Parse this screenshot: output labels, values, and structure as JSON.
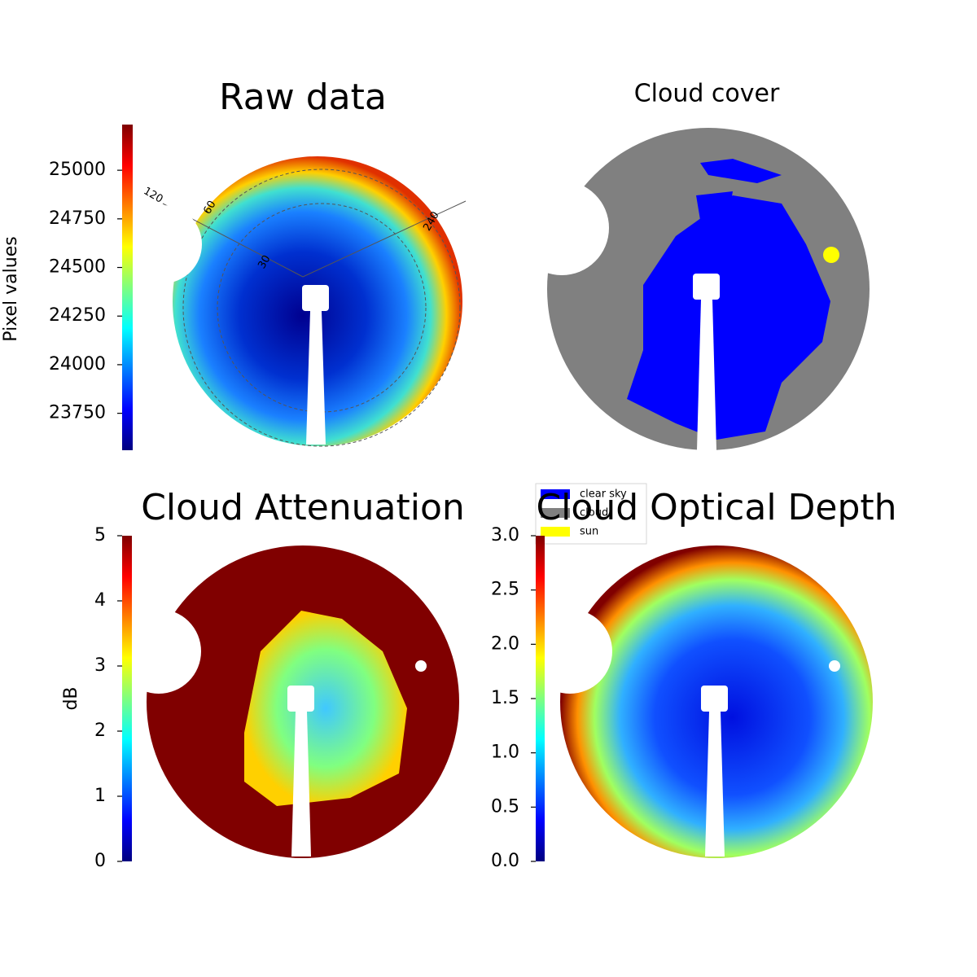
{
  "chart_data": [
    {
      "type": "image",
      "title": "Raw data",
      "colormap": "jet",
      "ylabel": "Pixel values",
      "ylim": [
        23560,
        25235
      ],
      "yticks": [
        23750,
        24000,
        24250,
        24500,
        24750,
        25000
      ],
      "polar_labels": [
        "120",
        "60",
        "240",
        "30"
      ]
    },
    {
      "type": "image",
      "title": "Cloud cover",
      "legend": [
        {
          "name": "clear sky",
          "color": "#0000ff"
        },
        {
          "name": "cloud",
          "color": "#808080"
        },
        {
          "name": "sun",
          "color": "#ffff00"
        }
      ]
    },
    {
      "type": "image",
      "title": "Cloud Attenuation",
      "colormap": "jet",
      "ylabel": "dB",
      "ylim": [
        0,
        5
      ],
      "yticks": [
        0,
        1,
        2,
        3,
        4,
        5
      ]
    },
    {
      "type": "image",
      "title": "Cloud Optical Depth",
      "colormap": "jet",
      "ylim": [
        0,
        3
      ],
      "yticks": [
        {
          "value": 0,
          "label": "0.0"
        },
        {
          "value": 0.5,
          "label": "0.5"
        },
        {
          "value": 1,
          "label": "1.0"
        },
        {
          "value": 1.5,
          "label": "1.5"
        },
        {
          "value": 2,
          "label": "2.0"
        },
        {
          "value": 2.5,
          "label": "2.5"
        },
        {
          "value": 3,
          "label": "3.0"
        }
      ]
    }
  ]
}
